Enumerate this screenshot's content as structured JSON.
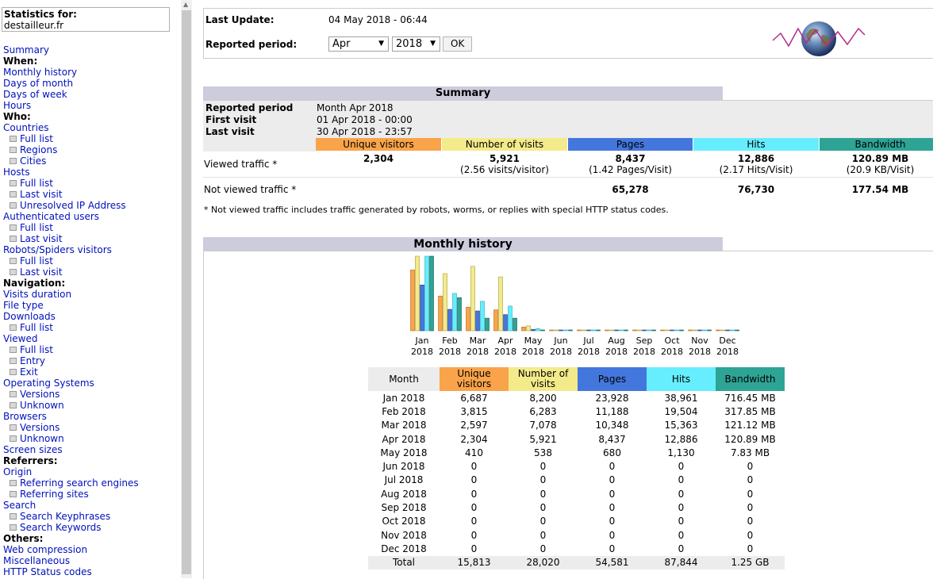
{
  "sidebar": {
    "stats_for_label": "Statistics for:",
    "site": "destailleur.fr",
    "menu": [
      {
        "type": "link",
        "label": "Summary"
      },
      {
        "type": "header",
        "label": "When:"
      },
      {
        "type": "link",
        "label": "Monthly history"
      },
      {
        "type": "link",
        "label": "Days of month"
      },
      {
        "type": "link",
        "label": "Days of week"
      },
      {
        "type": "link",
        "label": "Hours"
      },
      {
        "type": "header",
        "label": "Who:"
      },
      {
        "type": "link",
        "label": "Countries"
      },
      {
        "type": "sub",
        "label": "Full list"
      },
      {
        "type": "sub",
        "label": "Regions"
      },
      {
        "type": "sub",
        "label": "Cities"
      },
      {
        "type": "link",
        "label": "Hosts"
      },
      {
        "type": "sub",
        "label": "Full list"
      },
      {
        "type": "sub",
        "label": "Last visit"
      },
      {
        "type": "sub",
        "label": "Unresolved IP Address"
      },
      {
        "type": "link",
        "label": "Authenticated users"
      },
      {
        "type": "sub",
        "label": "Full list"
      },
      {
        "type": "sub",
        "label": "Last visit"
      },
      {
        "type": "link",
        "label": "Robots/Spiders visitors"
      },
      {
        "type": "sub",
        "label": "Full list"
      },
      {
        "type": "sub",
        "label": "Last visit"
      },
      {
        "type": "header",
        "label": "Navigation:"
      },
      {
        "type": "link",
        "label": "Visits duration"
      },
      {
        "type": "link",
        "label": "File type"
      },
      {
        "type": "link",
        "label": "Downloads"
      },
      {
        "type": "sub",
        "label": "Full list"
      },
      {
        "type": "link",
        "label": "Viewed"
      },
      {
        "type": "sub",
        "label": "Full list"
      },
      {
        "type": "sub",
        "label": "Entry"
      },
      {
        "type": "sub",
        "label": "Exit"
      },
      {
        "type": "link",
        "label": "Operating Systems"
      },
      {
        "type": "sub",
        "label": "Versions"
      },
      {
        "type": "sub",
        "label": "Unknown"
      },
      {
        "type": "link",
        "label": "Browsers"
      },
      {
        "type": "sub",
        "label": "Versions"
      },
      {
        "type": "sub",
        "label": "Unknown"
      },
      {
        "type": "link",
        "label": "Screen sizes"
      },
      {
        "type": "header",
        "label": "Referrers:"
      },
      {
        "type": "link",
        "label": "Origin"
      },
      {
        "type": "sub",
        "label": "Referring search engines"
      },
      {
        "type": "sub",
        "label": "Referring sites"
      },
      {
        "type": "link",
        "label": "Search"
      },
      {
        "type": "sub",
        "label": "Search Keyphrases"
      },
      {
        "type": "sub",
        "label": "Search Keywords"
      },
      {
        "type": "header",
        "label": "Others:"
      },
      {
        "type": "link",
        "label": "Web compression"
      },
      {
        "type": "link",
        "label": "Miscellaneous"
      },
      {
        "type": "link",
        "label": "HTTP Status codes"
      }
    ]
  },
  "top": {
    "last_update_label": "Last Update:",
    "last_update_value": "04 May 2018 - 06:44",
    "reported_period_label": "Reported period:",
    "month_select": "Apr",
    "year_select": "2018",
    "ok_label": "OK"
  },
  "summary": {
    "title": "Summary",
    "reported_period_label": "Reported period",
    "reported_period_value": "Month Apr 2018",
    "first_visit_label": "First visit",
    "first_visit_value": "01 Apr 2018 - 00:00",
    "last_visit_label": "Last visit",
    "last_visit_value": "30 Apr 2018 - 23:57",
    "columns": [
      "Unique visitors",
      "Number of visits",
      "Pages",
      "Hits",
      "Bandwidth"
    ],
    "viewed_label": "Viewed traffic *",
    "viewed": [
      {
        "main": "2,304",
        "sub": ""
      },
      {
        "main": "5,921",
        "sub": "(2.56 visits/visitor)"
      },
      {
        "main": "8,437",
        "sub": "(1.42 Pages/Visit)"
      },
      {
        "main": "12,886",
        "sub": "(2.17 Hits/Visit)"
      },
      {
        "main": "120.89 MB",
        "sub": "(20.9 KB/Visit)"
      }
    ],
    "not_viewed_label": "Not viewed traffic *",
    "not_viewed": [
      "",
      "",
      "65,278",
      "76,730",
      "177.54 MB"
    ],
    "note": "* Not viewed traffic includes traffic generated by robots, worms, or replies with special HTTP status codes."
  },
  "monthly": {
    "title": "Monthly history",
    "columns": [
      "Month",
      "Unique visitors",
      "Number of visits",
      "Pages",
      "Hits",
      "Bandwidth"
    ],
    "rows": [
      [
        "Jan 2018",
        "6,687",
        "8,200",
        "23,928",
        "38,961",
        "716.45 MB"
      ],
      [
        "Feb 2018",
        "3,815",
        "6,283",
        "11,188",
        "19,504",
        "317.85 MB"
      ],
      [
        "Mar 2018",
        "2,597",
        "7,078",
        "10,348",
        "15,363",
        "121.12 MB"
      ],
      [
        "Apr 2018",
        "2,304",
        "5,921",
        "8,437",
        "12,886",
        "120.89 MB"
      ],
      [
        "May 2018",
        "410",
        "538",
        "680",
        "1,130",
        "7.83 MB"
      ],
      [
        "Jun 2018",
        "0",
        "0",
        "0",
        "0",
        "0"
      ],
      [
        "Jul 2018",
        "0",
        "0",
        "0",
        "0",
        "0"
      ],
      [
        "Aug 2018",
        "0",
        "0",
        "0",
        "0",
        "0"
      ],
      [
        "Sep 2018",
        "0",
        "0",
        "0",
        "0",
        "0"
      ],
      [
        "Oct 2018",
        "0",
        "0",
        "0",
        "0",
        "0"
      ],
      [
        "Nov 2018",
        "0",
        "0",
        "0",
        "0",
        "0"
      ],
      [
        "Dec 2018",
        "0",
        "0",
        "0",
        "0",
        "0"
      ]
    ],
    "total": [
      "Total",
      "15,813",
      "28,020",
      "54,581",
      "87,844",
      "1.25 GB"
    ]
  },
  "colors": {
    "unique_visitors": "#f9a44a",
    "visits": "#f3eb8a",
    "pages": "#4477dd",
    "hits": "#66eeff",
    "bandwidth": "#2ea495",
    "title_bg": "#ccccdd"
  },
  "chart_data": {
    "type": "bar",
    "categories": [
      "Jan 2018",
      "Feb 2018",
      "Mar 2018",
      "Apr 2018",
      "May 2018",
      "Jun 2018",
      "Jul 2018",
      "Aug 2018",
      "Sep 2018",
      "Oct 2018",
      "Nov 2018",
      "Dec 2018"
    ],
    "tick_labels_top": [
      "Jan",
      "Feb",
      "Mar",
      "Apr",
      "May",
      "Jun",
      "Jul",
      "Aug",
      "Sep",
      "Oct",
      "Nov",
      "Dec"
    ],
    "tick_labels_bottom": [
      "2018",
      "2018",
      "2018",
      "2018",
      "2018",
      "2018",
      "2018",
      "2018",
      "2018",
      "2018",
      "2018",
      "2018"
    ],
    "series": [
      {
        "values": [
          6687,
          3815,
          2597,
          2304,
          410,
          0,
          0,
          0,
          0,
          0,
          0,
          0
        ]
      },
      {
        "values": [
          8200,
          6283,
          7078,
          5921,
          538,
          0,
          0,
          0,
          0,
          0,
          0,
          0
        ]
      },
      {
        "values": [
          23928,
          11188,
          10348,
          8437,
          680,
          0,
          0,
          0,
          0,
          0,
          0,
          0
        ]
      },
      {
        "values": [
          38961,
          19504,
          15363,
          12886,
          1130,
          0,
          0,
          0,
          0,
          0,
          0,
          0
        ]
      },
      {
        "values": [
          716.45,
          317.85,
          121.12,
          120.89,
          7.83,
          0,
          0,
          0,
          0,
          0,
          0,
          0
        ]
      }
    ]
  }
}
